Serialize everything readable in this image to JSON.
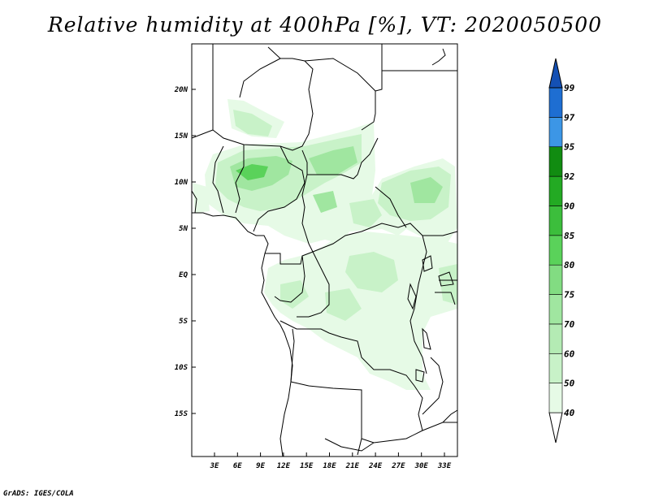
{
  "title": "Relative humidity at 400hPa [%], VT: 2020050500",
  "credit": "GrADS: IGES/COLA",
  "map": {
    "lon_range": [
      0,
      35
    ],
    "lat_range": [
      -20,
      25
    ],
    "lat_ticks": [
      "20N",
      "15N",
      "10N",
      "5N",
      "EQ",
      "5S",
      "10S",
      "15S"
    ],
    "lon_ticks": [
      "3E",
      "6E",
      "9E",
      "12E",
      "15E",
      "18E",
      "21E",
      "24E",
      "27E",
      "30E",
      "33E"
    ]
  },
  "colorbar": {
    "levels": [
      "40",
      "50",
      "60",
      "70",
      "75",
      "80",
      "85",
      "90",
      "92",
      "95",
      "97",
      "99"
    ],
    "colors": [
      "#ffffff",
      "#e6fae6",
      "#c8f2c8",
      "#b4ebb4",
      "#a0e6a0",
      "#82dc82",
      "#5ad25a",
      "#3cbe3c",
      "#23aa23",
      "#118c11",
      "#3c96e6",
      "#1e6ed2",
      "#1450b4"
    ]
  },
  "colors": {
    "humidity_40_60": "#e6fae6",
    "humidity_60_75": "#c8f2c8",
    "humidity_75_85": "#a0e6a0",
    "humidity_85_92": "#5ad25a"
  }
}
